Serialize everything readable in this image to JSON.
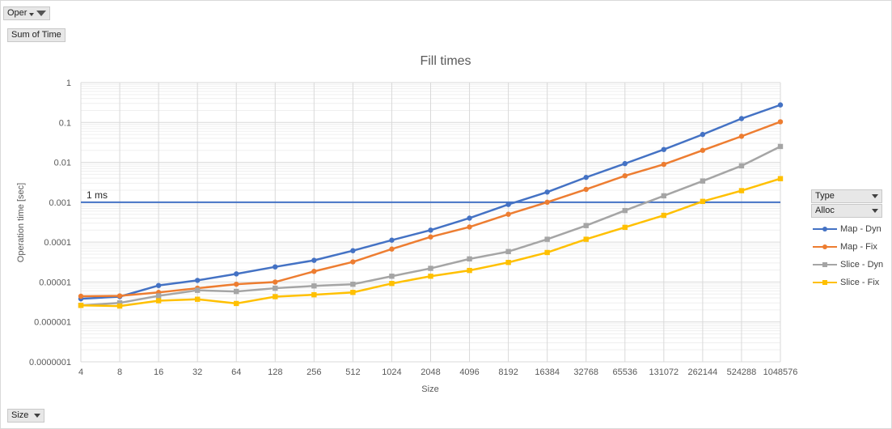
{
  "pivot": {
    "filter_field": "Oper",
    "value_field": "Sum of Time",
    "axis_field": "Size",
    "legend_fields": [
      "Type",
      "Alloc"
    ]
  },
  "chart_data": {
    "type": "line",
    "title": "Fill times",
    "xlabel": "Size",
    "ylabel": "Operation time [sec]",
    "yscale": "log",
    "ylim": [
      1e-07,
      1
    ],
    "y_ticks": [
      "1",
      "0.1",
      "0.01",
      "0.001",
      "0.0001",
      "0.00001",
      "0.000001",
      "0.0000001"
    ],
    "grid": true,
    "legend_position": "right",
    "categories": [
      "4",
      "8",
      "16",
      "32",
      "64",
      "128",
      "256",
      "512",
      "1024",
      "2048",
      "4096",
      "8192",
      "16384",
      "32768",
      "65536",
      "131072",
      "262144",
      "524288",
      "1048576"
    ],
    "series": [
      {
        "name": "Map - Dyn",
        "color": "#4472C4",
        "marker": "circle",
        "values": [
          3.8e-06,
          4.3e-06,
          8.2e-06,
          1.1e-05,
          1.6e-05,
          2.4e-05,
          3.5e-05,
          6.1e-05,
          0.000112,
          0.0002,
          0.0004,
          0.00088,
          0.0018,
          0.0042,
          0.0093,
          0.021,
          0.05,
          0.125,
          0.275
        ]
      },
      {
        "name": "Map - Fix",
        "color": "#ED7D31",
        "marker": "circle",
        "values": [
          4.4e-06,
          4.5e-06,
          5.5e-06,
          7e-06,
          8.8e-06,
          1e-05,
          1.85e-05,
          3.2e-05,
          6.7e-05,
          0.000135,
          0.00024,
          0.0005,
          0.001,
          0.0021,
          0.0046,
          0.0089,
          0.02,
          0.045,
          0.104
        ]
      },
      {
        "name": "Slice - Dyn",
        "color": "#A5A5A5",
        "marker": "square",
        "values": [
          2.6e-06,
          3e-06,
          4.5e-06,
          6.2e-06,
          5.8e-06,
          7e-06,
          8e-06,
          8.8e-06,
          1.4e-05,
          2.2e-05,
          3.8e-05,
          5.8e-05,
          0.000118,
          0.00026,
          0.00062,
          0.00145,
          0.0034,
          0.0082,
          0.025
        ]
      },
      {
        "name": "Slice - Fix",
        "color": "#FFC000",
        "marker": "square",
        "values": [
          2.6e-06,
          2.5e-06,
          3.4e-06,
          3.7e-06,
          2.9e-06,
          4.3e-06,
          4.8e-06,
          5.5e-06,
          9.2e-06,
          1.4e-05,
          1.95e-05,
          3.1e-05,
          5.5e-05,
          0.000118,
          0.000235,
          0.00047,
          0.00105,
          0.00195,
          0.0039
        ]
      }
    ],
    "reference_line": {
      "label": "1 ms",
      "value": 0.001,
      "color": "#4472C4"
    }
  }
}
